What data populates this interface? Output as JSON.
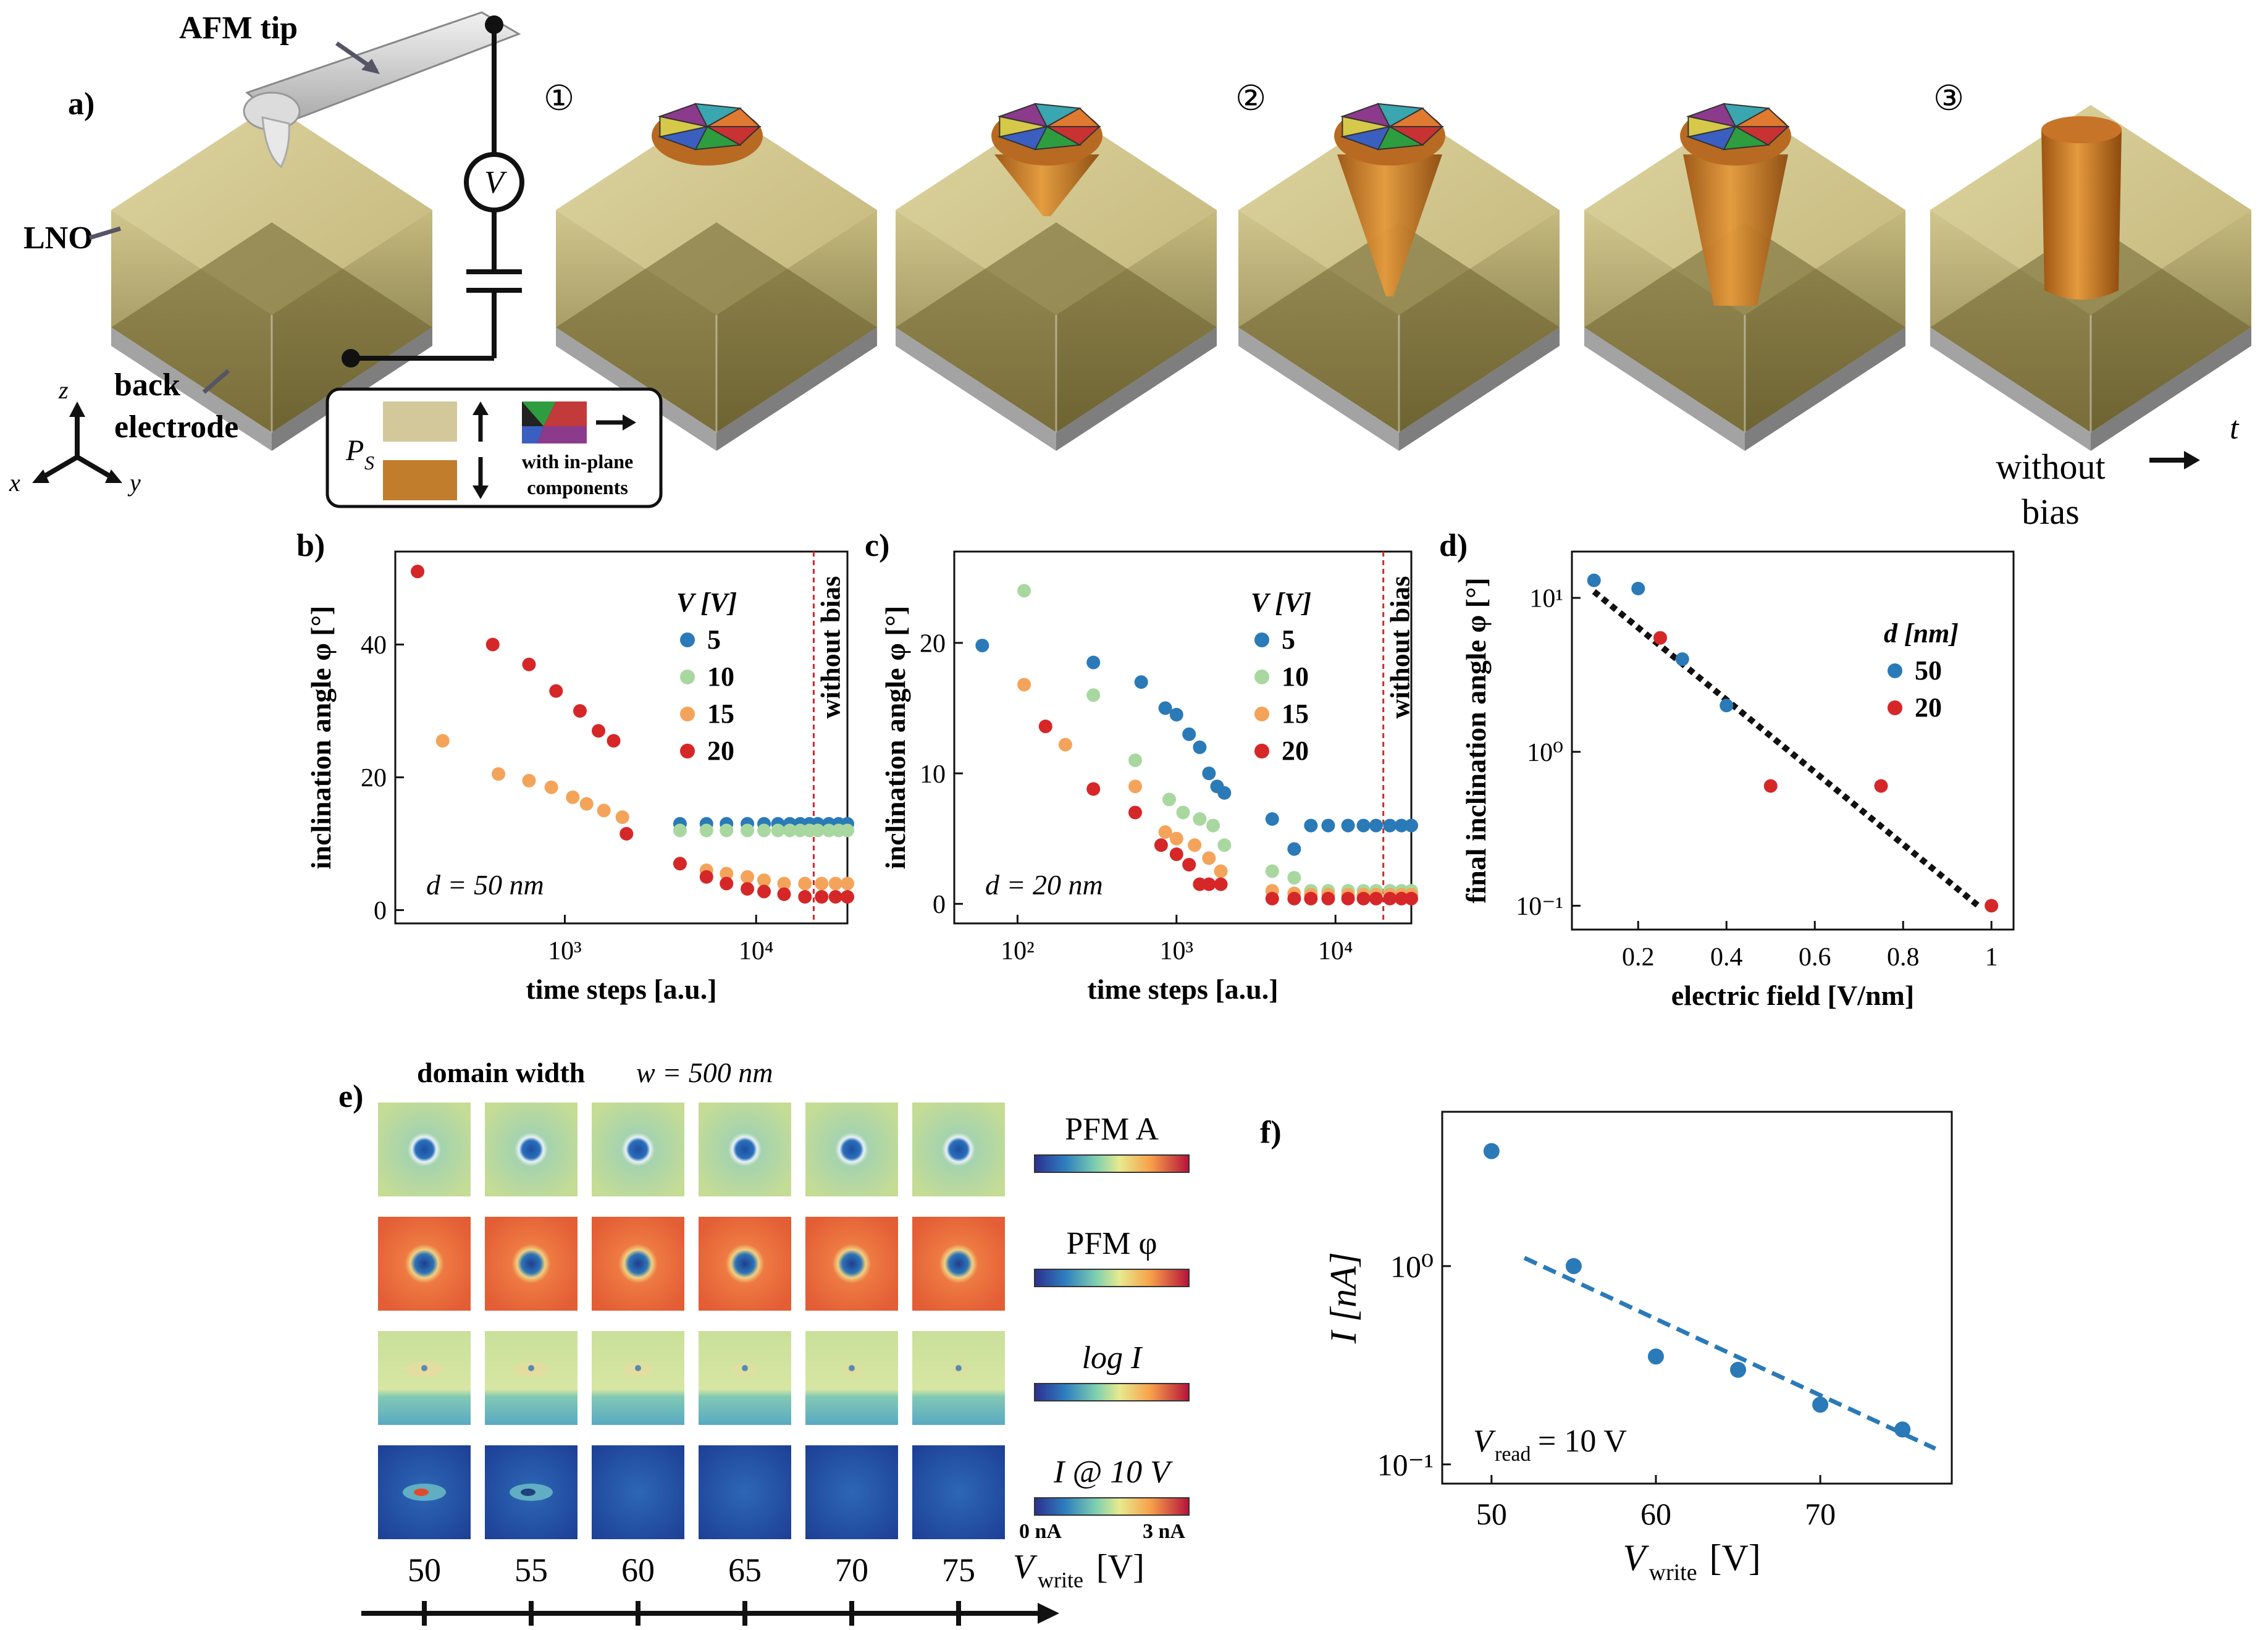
{
  "panel_a": {
    "label": "a)",
    "afm_tip": "AFM tip",
    "lno": "LNO",
    "back_electrode_1": "back",
    "back_electrode_2": "electrode",
    "voltage": "V",
    "steps": [
      "①",
      "②",
      "③"
    ],
    "without_bias_1": "without",
    "without_bias_2": "bias",
    "time_axis": "t",
    "axes": {
      "z": "z",
      "x": "x",
      "y": "y"
    },
    "legend": {
      "ps": "P",
      "ps_sub": "S",
      "inplane_1": "with in-plane",
      "inplane_2": "components"
    }
  },
  "colors": {
    "film": "#c9bb78",
    "film_dark": "#6f6430",
    "electrode": "#9d9d9d",
    "domain": "#c5761f",
    "blue": "#2a7ab8",
    "lightgreen": "#a8d8a0",
    "orange": "#f4a45a",
    "red": "#d62728",
    "pfm_bg": "#d8e2a0",
    "pfm_phase": "#e9663d",
    "current": "#1e4ea8"
  },
  "chart_data": [
    {
      "id": "b",
      "label": "b)",
      "type": "scatter",
      "xscale": "log",
      "xlabel": "time steps [a.u.]",
      "ylabel": "inclination angle φ [°]",
      "xlim": [
        130,
        30000
      ],
      "ylim": [
        -2,
        54
      ],
      "yticks": [
        "0",
        "20",
        "40"
      ],
      "xticks": [
        "10³",
        "10⁴"
      ],
      "legend_title": "V [V]",
      "annotation": "d = 50 nm",
      "vline_label": "without bias",
      "vline_x": 20000,
      "series": [
        {
          "name": "5",
          "points": [
            [
              4000,
              13
            ],
            [
              5500,
              13
            ],
            [
              7000,
              13
            ],
            [
              9000,
              13
            ],
            [
              11000,
              13
            ],
            [
              13000,
              13
            ],
            [
              15000,
              13
            ],
            [
              17000,
              13
            ],
            [
              19000,
              13
            ],
            [
              21000,
              13
            ],
            [
              24000,
              13
            ],
            [
              27000,
              13
            ],
            [
              30000,
              13
            ]
          ]
        },
        {
          "name": "10",
          "points": [
            [
              2000,
              14
            ],
            [
              4000,
              12
            ],
            [
              5500,
              12
            ],
            [
              7000,
              12
            ],
            [
              9000,
              12
            ],
            [
              11000,
              12
            ],
            [
              13000,
              12
            ],
            [
              15000,
              12
            ],
            [
              17000,
              12
            ],
            [
              19000,
              12
            ],
            [
              21000,
              12
            ],
            [
              24000,
              12
            ],
            [
              27000,
              12
            ],
            [
              30000,
              12
            ]
          ]
        },
        {
          "name": "15",
          "points": [
            [
              230,
              25.5
            ],
            [
              450,
              20.5
            ],
            [
              650,
              19.5
            ],
            [
              850,
              18.5
            ],
            [
              1100,
              17
            ],
            [
              1300,
              16
            ],
            [
              1600,
              15
            ],
            [
              2000,
              14
            ],
            [
              4000,
              7
            ],
            [
              5500,
              6
            ],
            [
              7000,
              5.5
            ],
            [
              9000,
              5
            ],
            [
              11000,
              4.5
            ],
            [
              14000,
              4
            ],
            [
              18000,
              4
            ],
            [
              22000,
              4
            ],
            [
              26000,
              4
            ],
            [
              30000,
              4
            ]
          ]
        },
        {
          "name": "20",
          "points": [
            [
              170,
              51
            ],
            [
              420,
              40
            ],
            [
              650,
              37
            ],
            [
              900,
              33
            ],
            [
              1200,
              30
            ],
            [
              1500,
              27
            ],
            [
              1800,
              25.5
            ],
            [
              2100,
              11.5
            ],
            [
              4000,
              7
            ],
            [
              5500,
              5
            ],
            [
              7000,
              4
            ],
            [
              9000,
              3.2
            ],
            [
              11000,
              2.8
            ],
            [
              14000,
              2.4
            ],
            [
              18000,
              2
            ],
            [
              22000,
              2
            ],
            [
              26000,
              2
            ],
            [
              30000,
              2
            ]
          ]
        }
      ]
    },
    {
      "id": "c",
      "label": "c)",
      "type": "scatter",
      "xscale": "log",
      "xlabel": "time steps [a.u.]",
      "ylabel": "inclination angle φ [°]",
      "xlim": [
        40,
        30000
      ],
      "ylim": [
        -1.5,
        27
      ],
      "yticks": [
        "0",
        "10",
        "20"
      ],
      "xticks": [
        "10²",
        "10³",
        "10⁴"
      ],
      "legend_title": "V [V]",
      "annotation": "d = 20 nm",
      "vline_label": "without bias",
      "vline_x": 20000,
      "series": [
        {
          "name": "5",
          "points": [
            [
              60,
              19.8
            ],
            [
              300,
              18.5
            ],
            [
              600,
              17
            ],
            [
              850,
              15
            ],
            [
              1000,
              14.5
            ],
            [
              1200,
              13
            ],
            [
              1400,
              12
            ],
            [
              1600,
              10
            ],
            [
              1800,
              9
            ],
            [
              2000,
              8.5
            ],
            [
              4000,
              6.5
            ],
            [
              5500,
              4.2
            ],
            [
              7000,
              6
            ],
            [
              9000,
              6
            ],
            [
              12000,
              6
            ],
            [
              15000,
              6
            ],
            [
              18000,
              6
            ],
            [
              22000,
              6
            ],
            [
              26000,
              6
            ],
            [
              30000,
              6
            ]
          ]
        },
        {
          "name": "10",
          "points": [
            [
              110,
              24
            ],
            [
              300,
              16
            ],
            [
              550,
              11
            ],
            [
              900,
              8
            ],
            [
              1100,
              7
            ],
            [
              1400,
              6.5
            ],
            [
              1700,
              6
            ],
            [
              2000,
              4.5
            ],
            [
              4000,
              2.5
            ],
            [
              5500,
              2
            ],
            [
              7000,
              1
            ],
            [
              9000,
              1
            ],
            [
              12000,
              1
            ],
            [
              15000,
              1
            ],
            [
              18000,
              1
            ],
            [
              22000,
              1
            ],
            [
              26000,
              1
            ],
            [
              30000,
              1
            ]
          ]
        },
        {
          "name": "15",
          "points": [
            [
              110,
              16.8
            ],
            [
              200,
              12.2
            ],
            [
              550,
              9
            ],
            [
              850,
              5.5
            ],
            [
              1000,
              5
            ],
            [
              1300,
              4.5
            ],
            [
              1600,
              3.5
            ],
            [
              1900,
              2.5
            ],
            [
              4000,
              1
            ],
            [
              5500,
              0.8
            ],
            [
              7000,
              0.7
            ],
            [
              9000,
              0.7
            ],
            [
              12000,
              0.7
            ],
            [
              15000,
              0.7
            ],
            [
              18000,
              0.7
            ],
            [
              22000,
              0.7
            ],
            [
              26000,
              0.7
            ],
            [
              30000,
              0.7
            ]
          ]
        },
        {
          "name": "20",
          "points": [
            [
              150,
              13.6
            ],
            [
              300,
              8.8
            ],
            [
              550,
              7
            ],
            [
              800,
              4.5
            ],
            [
              1000,
              3.8
            ],
            [
              1200,
              3
            ],
            [
              1400,
              1.5
            ],
            [
              1600,
              1.5
            ],
            [
              1900,
              1.5
            ],
            [
              4000,
              0.4
            ],
            [
              5500,
              0.4
            ],
            [
              7000,
              0.4
            ],
            [
              9000,
              0.4
            ],
            [
              12000,
              0.4
            ],
            [
              15000,
              0.4
            ],
            [
              18000,
              0.4
            ],
            [
              22000,
              0.4
            ],
            [
              26000,
              0.4
            ],
            [
              30000,
              0.4
            ]
          ]
        }
      ]
    },
    {
      "id": "d",
      "label": "d)",
      "type": "scatter",
      "yscale": "log",
      "xlabel": "electric field [V/nm]",
      "ylabel": "final inclination angle φ [°]",
      "xlim": [
        0.05,
        1.05
      ],
      "ylim": [
        0.07,
        20
      ],
      "xticks": [
        "0.2",
        "0.4",
        "0.6",
        "0.8",
        "1"
      ],
      "yticks": [
        "10⁻¹",
        "10⁰",
        "10¹"
      ],
      "legend_title": "d [nm]",
      "series": [
        {
          "name": "50",
          "points": [
            [
              0.1,
              13
            ],
            [
              0.2,
              11.5
            ],
            [
              0.3,
              4
            ],
            [
              0.4,
              2
            ]
          ]
        },
        {
          "name": "20",
          "points": [
            [
              0.25,
              5.5
            ],
            [
              0.5,
              0.6
            ],
            [
              0.75,
              0.6
            ],
            [
              1.0,
              0.1
            ]
          ]
        }
      ],
      "fit": [
        [
          0.1,
          11
        ],
        [
          0.97,
          0.1
        ]
      ]
    },
    {
      "id": "f",
      "label": "f)",
      "type": "scatter",
      "yscale": "log",
      "xlabel": "V",
      "xlabel_sub": "write",
      "xlabel_unit": " [V]",
      "ylabel": "I [nA]",
      "xlim": [
        47,
        78
      ],
      "ylim": [
        0.08,
        6
      ],
      "xticks": [
        "50",
        "60",
        "70"
      ],
      "yticks": [
        "10⁻¹",
        "10⁰"
      ],
      "annotation": "V",
      "annotation_sub": "read",
      "annotation_val": " = 10 V",
      "series": [
        {
          "name": "I",
          "points": [
            [
              50,
              3.8
            ],
            [
              55,
              1.0
            ],
            [
              60,
              0.35
            ],
            [
              65,
              0.3
            ],
            [
              70,
              0.2
            ],
            [
              75,
              0.15
            ]
          ]
        }
      ],
      "fit": [
        [
          52,
          1.1
        ],
        [
          77,
          0.12
        ]
      ]
    }
  ],
  "panel_e": {
    "label": "e)",
    "title": "domain width",
    "width_expr": "w = 500 nm",
    "rows": [
      {
        "name": "PFM A"
      },
      {
        "name": "PFM φ"
      },
      {
        "name": "log I"
      },
      {
        "name": "I @ 10 V",
        "min": "0 nA",
        "max": "3 nA"
      }
    ],
    "voltages": [
      "50",
      "55",
      "60",
      "65",
      "70",
      "75"
    ],
    "axis_label": "V",
    "axis_sub": "write",
    "axis_unit": " [V]"
  }
}
